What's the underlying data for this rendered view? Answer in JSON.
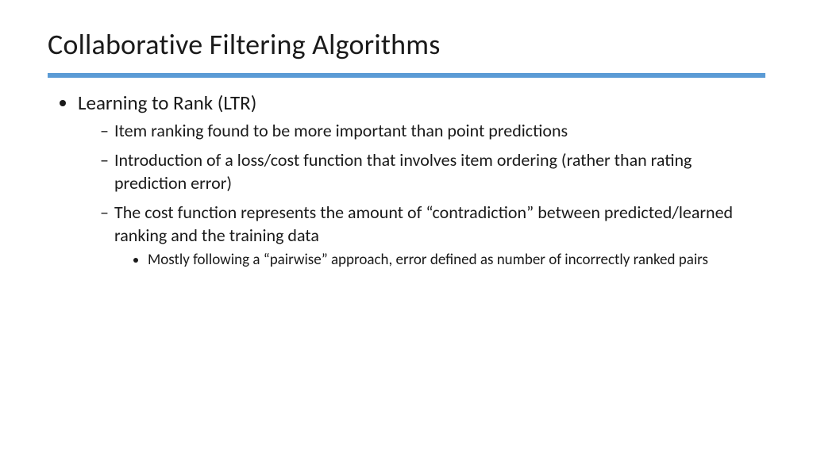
{
  "slide": {
    "title": "Collaborative Filtering Algorithms",
    "accent_color": "#5b9bd5",
    "background_color": "#ffffff",
    "text_color": "#1a1a1a",
    "font_family": "Segoe UI / Calibri",
    "title_fontsize": 36,
    "bullets": {
      "lvl1": [
        {
          "text": "Learning to Rank (LTR)",
          "lvl2": [
            {
              "text": "Item ranking found to be more important than point predictions"
            },
            {
              "text": "Introduction of a loss/cost function that involves item ordering (rather than rating prediction error)"
            },
            {
              "text": "The cost function represents the amount of “contradiction” between predicted/learned ranking and the training data",
              "lvl3": [
                {
                  "text": "Mostly following a “pairwise” approach, error defined as number of incorrectly ranked pairs"
                }
              ]
            }
          ]
        }
      ]
    }
  }
}
